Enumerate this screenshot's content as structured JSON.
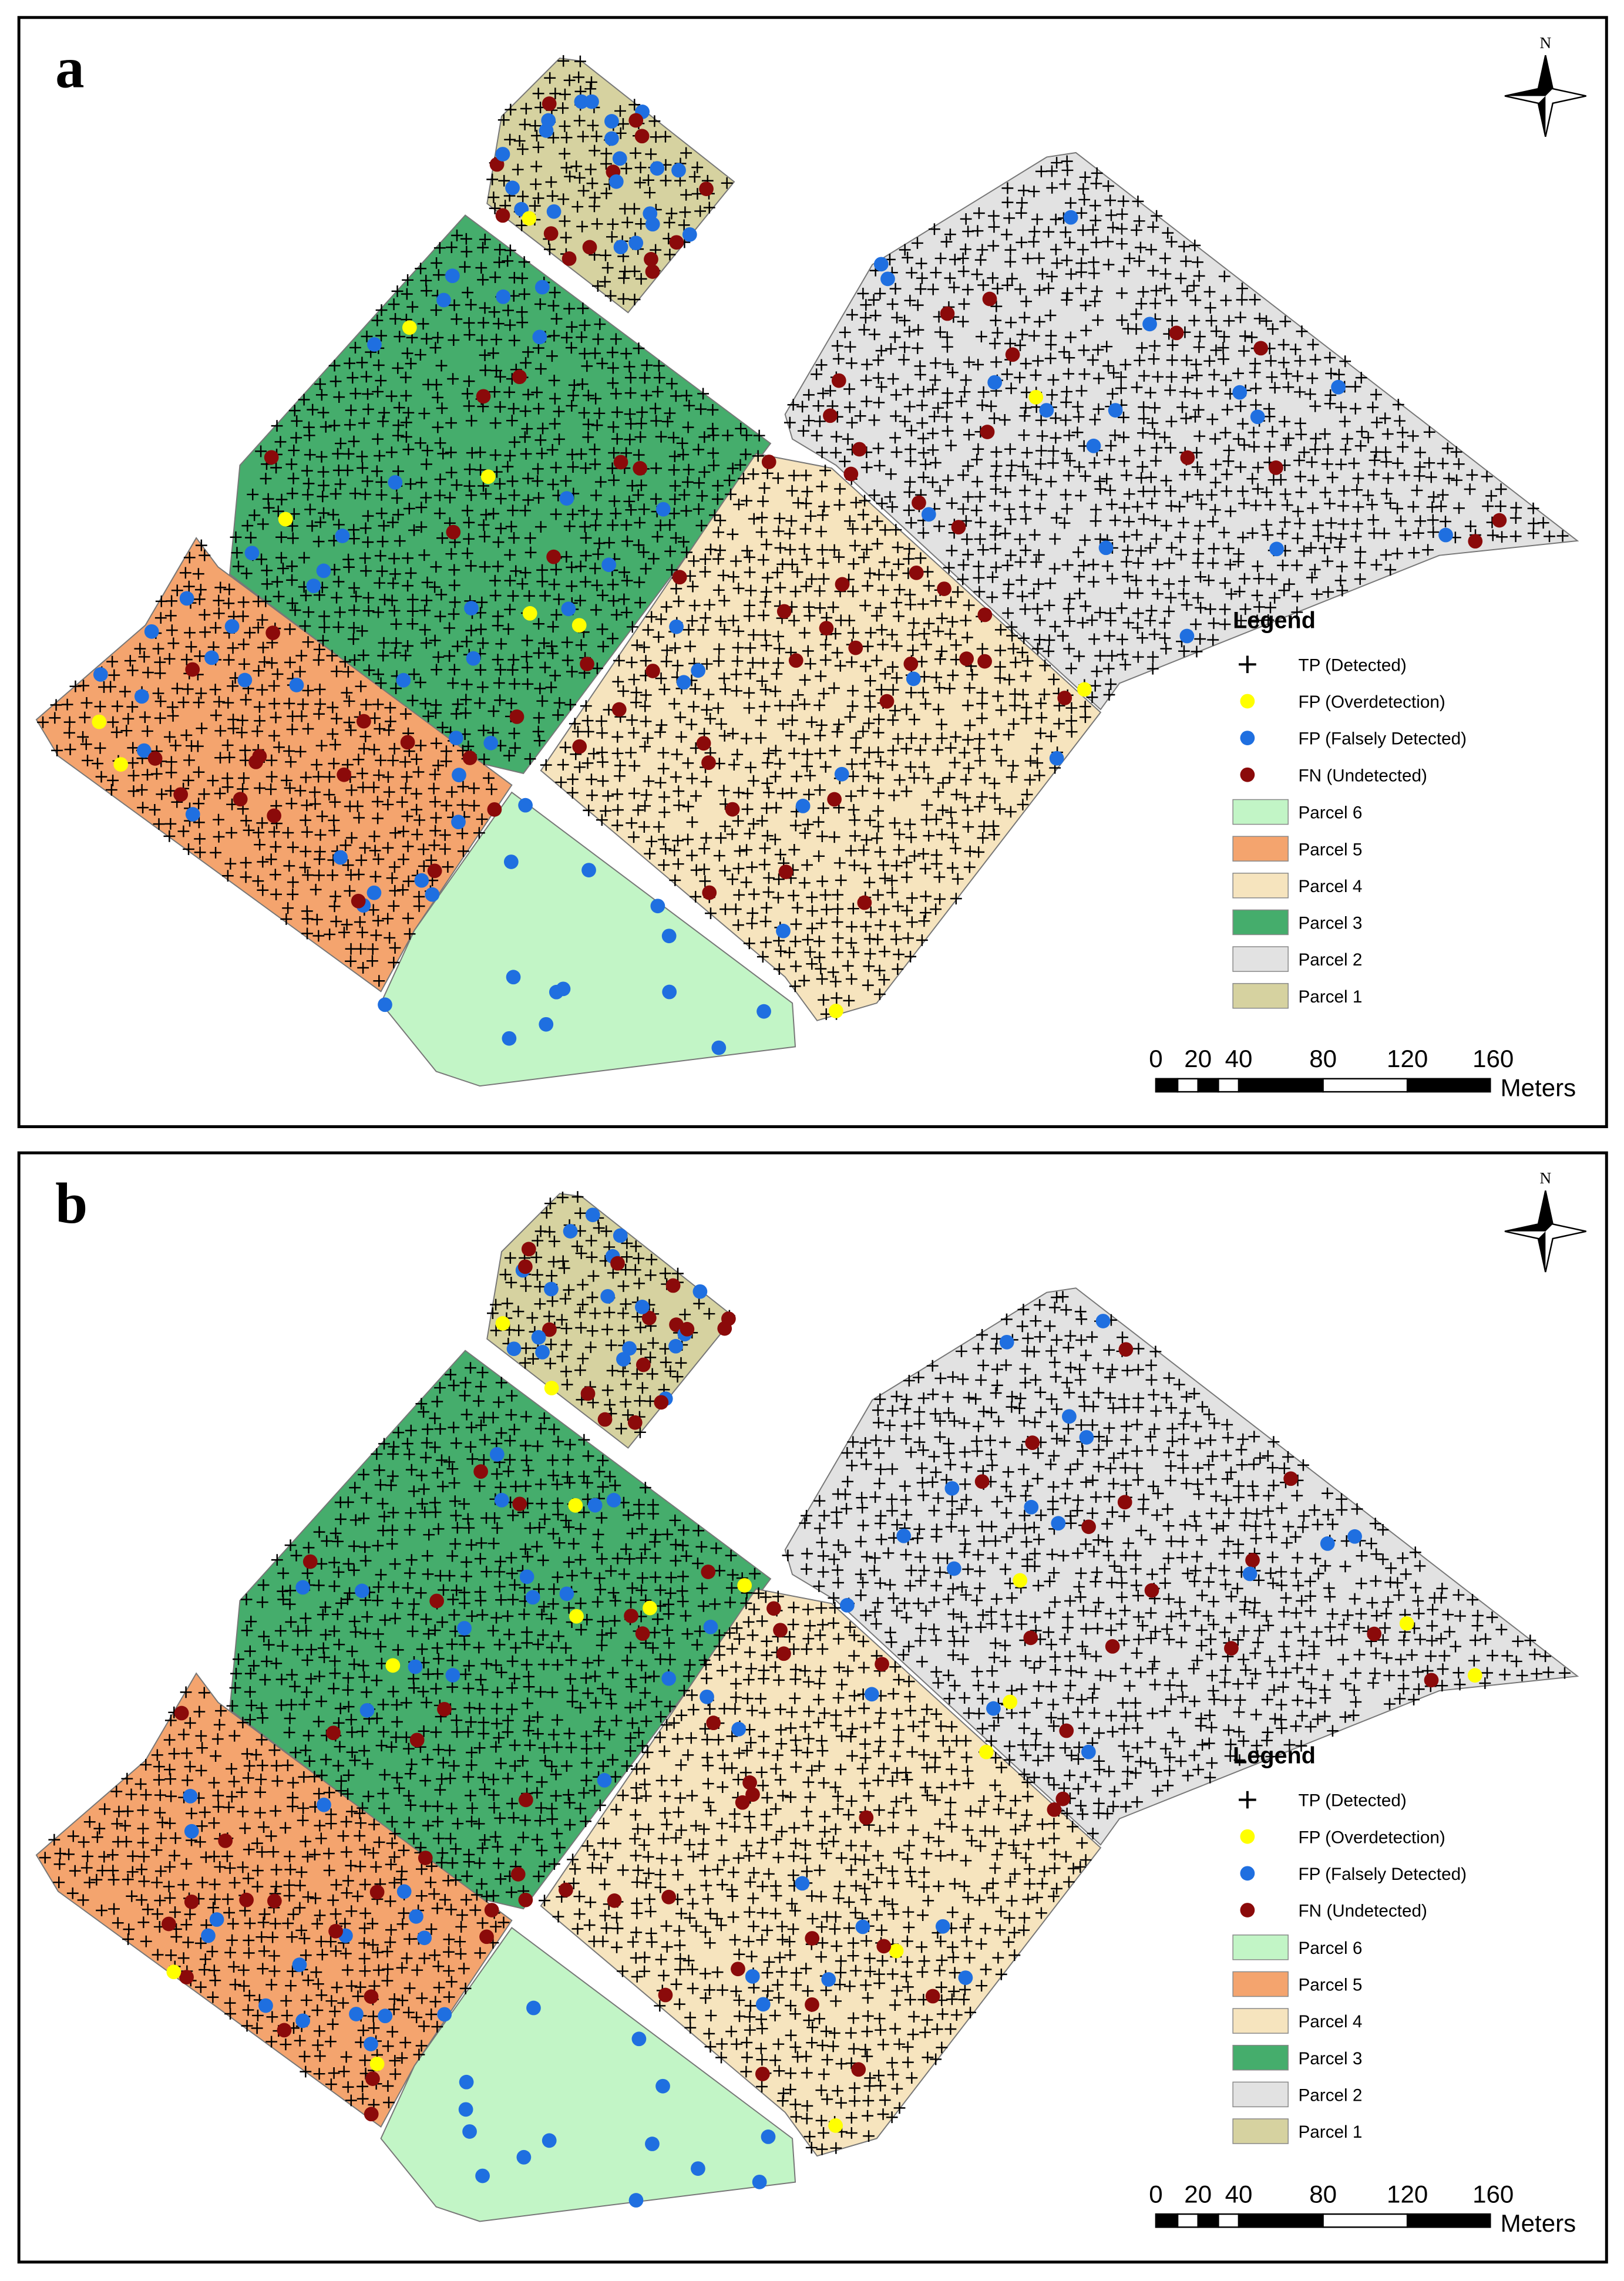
{
  "panels": [
    {
      "label": "a",
      "north": "N",
      "legend": {
        "title": "Legend",
        "items": [
          {
            "label": "TP (Detected)",
            "color": "#000000"
          },
          {
            "label": "FP (Overdetection)",
            "color": "#ffff00"
          },
          {
            "label": "FP (Falsely Detected)",
            "color": "#1f6fe0"
          },
          {
            "label": "FN (Undetected)",
            "color": "#8b0a0a"
          },
          {
            "label": "Parcel 6",
            "color": "#c2f5c6"
          },
          {
            "label": "Parcel 5",
            "color": "#f4a46e"
          },
          {
            "label": "Parcel 4",
            "color": "#f6e4be"
          },
          {
            "label": "Parcel 3",
            "color": "#45ad6c"
          },
          {
            "label": "Parcel 2",
            "color": "#e2e2e2"
          },
          {
            "label": "Parcel 1",
            "color": "#d6d2a0"
          }
        ]
      },
      "scale": {
        "ticks": [
          "0",
          "20",
          "40",
          "80",
          "120",
          "160"
        ],
        "unit": "Meters"
      }
    },
    {
      "label": "b",
      "north": "N",
      "legend": {
        "title": "Legend",
        "items": [
          {
            "label": "TP (Detected)",
            "color": "#000000"
          },
          {
            "label": "FP (Overdetection)",
            "color": "#ffff00"
          },
          {
            "label": "FP (Falsely Detected)",
            "color": "#1f6fe0"
          },
          {
            "label": "FN (Undetected)",
            "color": "#8b0a0a"
          },
          {
            "label": "Parcel 6",
            "color": "#c2f5c6"
          },
          {
            "label": "Parcel 5",
            "color": "#f4a46e"
          },
          {
            "label": "Parcel 4",
            "color": "#f6e4be"
          },
          {
            "label": "Parcel 3",
            "color": "#45ad6c"
          },
          {
            "label": "Parcel 2",
            "color": "#e2e2e2"
          },
          {
            "label": "Parcel 1",
            "color": "#d6d2a0"
          }
        ]
      },
      "scale": {
        "ticks": [
          "0",
          "20",
          "40",
          "80",
          "120",
          "160"
        ],
        "unit": "Meters"
      }
    }
  ]
}
